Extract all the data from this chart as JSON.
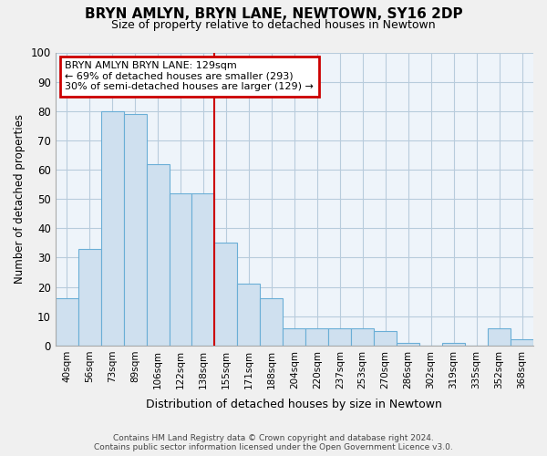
{
  "title": "BRYN AMLYN, BRYN LANE, NEWTOWN, SY16 2DP",
  "subtitle": "Size of property relative to detached houses in Newtown",
  "xlabel": "Distribution of detached houses by size in Newtown",
  "ylabel": "Number of detached properties",
  "bar_color": "#cfe0ef",
  "bar_edge_color": "#6aaed6",
  "categories": [
    "40sqm",
    "56sqm",
    "73sqm",
    "89sqm",
    "106sqm",
    "122sqm",
    "138sqm",
    "155sqm",
    "171sqm",
    "188sqm",
    "204sqm",
    "220sqm",
    "237sqm",
    "253sqm",
    "270sqm",
    "286sqm",
    "302sqm",
    "319sqm",
    "335sqm",
    "352sqm",
    "368sqm"
  ],
  "values": [
    16,
    33,
    80,
    79,
    62,
    52,
    52,
    35,
    21,
    16,
    6,
    6,
    6,
    6,
    5,
    1,
    0,
    1,
    0,
    6,
    2
  ],
  "ylim": [
    0,
    100
  ],
  "yticks": [
    0,
    10,
    20,
    30,
    40,
    50,
    60,
    70,
    80,
    90,
    100
  ],
  "vline_x": 6.5,
  "vline_color": "#cc0000",
  "annotation_title": "BRYN AMLYN BRYN LANE: 129sqm",
  "annotation_line1": "← 69% of detached houses are smaller (293)",
  "annotation_line2": "30% of semi-detached houses are larger (129) →",
  "annotation_box_color": "#cc0000",
  "footnote1": "Contains HM Land Registry data © Crown copyright and database right 2024.",
  "footnote2": "Contains public sector information licensed under the Open Government Licence v3.0.",
  "background_color": "#eef4fa",
  "grid_color": "#b8ccdc"
}
